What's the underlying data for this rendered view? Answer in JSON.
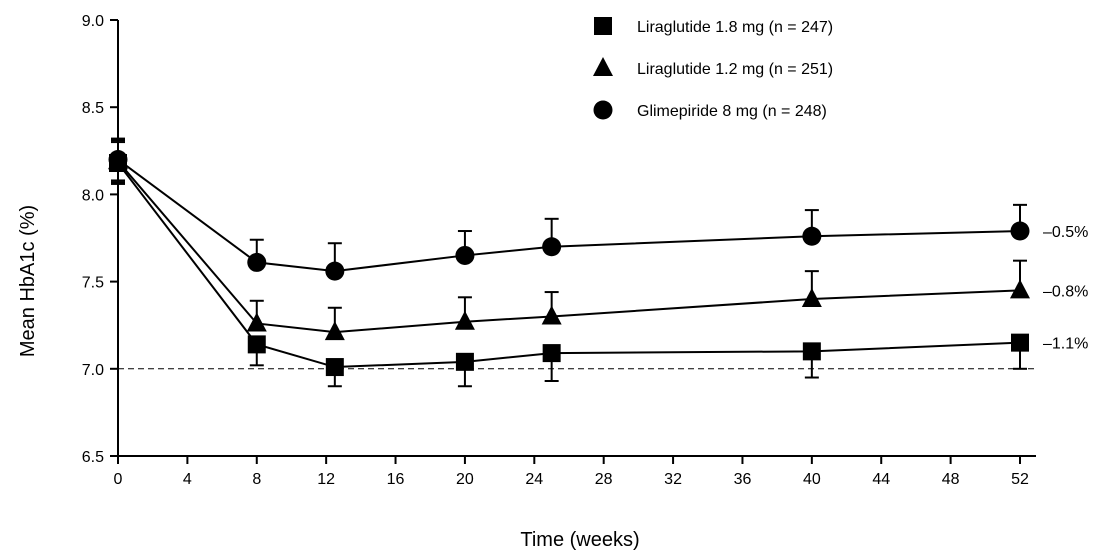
{
  "chart_data": {
    "type": "line",
    "title": "",
    "xlabel": "Time (weeks)",
    "ylabel": "Mean HbA1c (%)",
    "xlim": [
      0,
      54
    ],
    "ylim": [
      6.5,
      9.0
    ],
    "x_ticks": [
      "0",
      "4",
      "8",
      "12",
      "16",
      "20",
      "24",
      "28",
      "32",
      "36",
      "40",
      "44",
      "48",
      "52"
    ],
    "y_ticks": [
      "6.5",
      "7.0",
      "7.5",
      "8.0",
      "8.5",
      "9.0"
    ],
    "x_tick_values": [
      0,
      4,
      8,
      12,
      16,
      20,
      24,
      28,
      32,
      36,
      40,
      44,
      48,
      52
    ],
    "y_tick_values": [
      6.5,
      7.0,
      7.5,
      8.0,
      8.5,
      9.0
    ],
    "reference_line": {
      "y": 7.0,
      "style": "dashed"
    },
    "legend_position": "top-right",
    "grid": false,
    "series": [
      {
        "name": "Liraglutide 1.8 mg (n = 247)",
        "marker": "square",
        "x": [
          0,
          8,
          12.5,
          20,
          25,
          40,
          52
        ],
        "y": [
          8.18,
          7.14,
          7.01,
          7.04,
          7.09,
          7.1,
          7.15
        ],
        "error": [
          0.12,
          0.12,
          0.11,
          0.14,
          0.16,
          0.15,
          0.15
        ],
        "end_label": "–1.1%"
      },
      {
        "name": "Liraglutide 1.2 mg (n = 251)",
        "marker": "triangle",
        "x": [
          0,
          8,
          12.5,
          20,
          25,
          40,
          52
        ],
        "y": [
          8.19,
          7.26,
          7.21,
          7.27,
          7.3,
          7.4,
          7.45
        ],
        "error": [
          0.12,
          0.13,
          0.14,
          0.14,
          0.14,
          0.16,
          0.17
        ],
        "end_label": "–0.8%"
      },
      {
        "name": "Glimepiride 8 mg (n = 248)",
        "marker": "circle",
        "x": [
          0,
          8,
          12.5,
          20,
          25,
          40,
          52
        ],
        "y": [
          8.2,
          7.61,
          7.56,
          7.65,
          7.7,
          7.76,
          7.79
        ],
        "error": [
          0.12,
          0.13,
          0.16,
          0.14,
          0.16,
          0.15,
          0.15
        ],
        "end_label": "–0.5%"
      }
    ]
  }
}
